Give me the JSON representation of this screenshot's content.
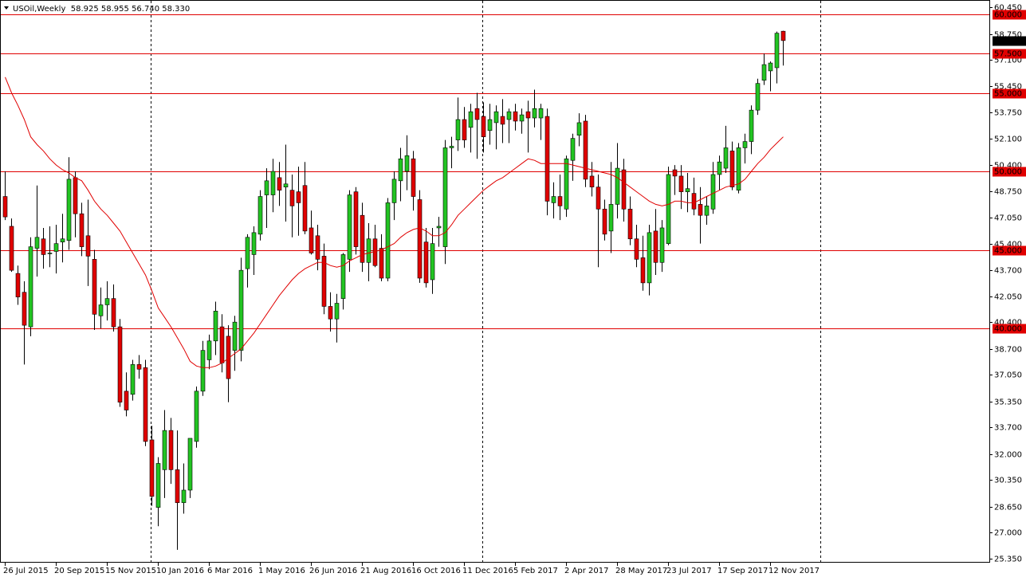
{
  "chart_data": {
    "type": "candlestick",
    "title": "USOil,Weekly  58.925 58.955 56.740 58.330",
    "categories": [
      "26 Jul 2015",
      null,
      null,
      null,
      null,
      null,
      null,
      null,
      "20 Sep 2015",
      null,
      null,
      null,
      null,
      null,
      null,
      null,
      "15 Nov 2015",
      null,
      null,
      null,
      null,
      null,
      null,
      null,
      "10 Jan 2016",
      null,
      null,
      null,
      null,
      null,
      null,
      null,
      "6 Mar 2016",
      null,
      null,
      null,
      null,
      null,
      null,
      null,
      "1 May 2016",
      null,
      null,
      null,
      null,
      null,
      null,
      null,
      "26 Jun 2016",
      null,
      null,
      null,
      null,
      null,
      null,
      null,
      "21 Aug 2016",
      null,
      null,
      null,
      null,
      null,
      null,
      null,
      "16 Oct 2016",
      null,
      null,
      null,
      null,
      null,
      null,
      null,
      "11 Dec 2016",
      null,
      null,
      null,
      null,
      null,
      null,
      null,
      "5 Feb 2017",
      null,
      null,
      null,
      null,
      null,
      null,
      null,
      "2 Apr 2017",
      null,
      null,
      null,
      null,
      null,
      null,
      null,
      "28 May 2017",
      null,
      null,
      null,
      null,
      null,
      null,
      null,
      "23 Jul 2017",
      null,
      null,
      null,
      null,
      null,
      null,
      null,
      "17 Sep 2017",
      null,
      null,
      null,
      null,
      null,
      null,
      null,
      "12 Nov 2017",
      null,
      null
    ],
    "open": [
      48.4,
      46.5,
      43.5,
      42.3,
      40.1,
      45.1,
      45.7,
      44.8,
      44.9,
      45.5,
      45.6,
      49.6,
      47.3,
      45.9,
      44.4,
      40.8,
      41.5,
      41.9,
      40.1,
      36.0,
      35.8,
      37.7,
      37.5,
      32.9,
      28.6,
      31.0,
      33.5,
      31.0,
      28.9,
      29.7,
      32.8,
      36.0,
      38.0,
      39.2,
      40.1,
      39.5,
      38.6,
      38.6,
      43.8,
      44.7,
      46.0,
      48.5,
      48.5,
      49.6,
      49.0,
      48.8,
      48.7,
      49.1,
      46.4,
      45.9,
      44.6,
      41.4,
      40.6,
      41.9,
      44.4,
      48.7,
      47.2,
      44.2,
      45.7,
      45.1,
      43.2,
      48.0,
      49.4,
      50.0,
      50.8,
      48.2,
      45.5,
      43.1,
      46.4,
      45.2,
      51.5,
      52.0,
      53.3,
      52.8,
      54.0,
      53.5,
      52.6,
      53.1,
      53.5,
      53.3,
      53.8,
      53.2,
      53.8,
      53.4,
      53.4,
      53.5,
      48.0,
      48.4,
      47.6,
      50.7,
      52.3,
      53.2,
      49.7,
      49.0,
      47.6,
      46.2,
      47.9,
      50.1,
      47.6,
      45.7,
      44.5,
      42.9,
      46.2,
      44.2,
      45.4,
      50.1,
      49.7,
      48.7,
      48.6,
      47.9,
      47.2,
      47.6,
      49.8,
      50.2,
      51.3,
      48.8,
      51.5,
      51.9,
      53.9,
      55.8,
      56.4,
      56.6,
      58.925
    ],
    "high": [
      50.0,
      47.0,
      44.0,
      43.0,
      45.8,
      49.1,
      46.4,
      46.5,
      46.6,
      47.3,
      50.9,
      50.0,
      48.0,
      48.2,
      45.0,
      42.6,
      43.0,
      42.8,
      40.6,
      37.2,
      38.0,
      38.3,
      38.0,
      33.8,
      31.8,
      34.8,
      34.3,
      33.5,
      31.4,
      33.0,
      36.3,
      39.2,
      39.6,
      41.7,
      40.9,
      40.2,
      40.8,
      44.5,
      46.0,
      46.5,
      48.8,
      50.2,
      50.8,
      50.6,
      51.7,
      49.8,
      50.3,
      50.6,
      47.5,
      46.6,
      45.4,
      42.3,
      42.2,
      44.8,
      48.8,
      49.0,
      48.0,
      46.7,
      46.6,
      46.0,
      48.3,
      50.0,
      51.5,
      52.3,
      51.3,
      48.8,
      46.4,
      46.4,
      47.1,
      52.0,
      52.2,
      54.7,
      54.1,
      54.3,
      55.0,
      54.4,
      54.3,
      54.2,
      54.6,
      54.0,
      54.3,
      54.0,
      54.5,
      55.2,
      54.3,
      54.0,
      49.3,
      49.8,
      51.0,
      52.4,
      53.7,
      53.6,
      50.6,
      49.8,
      48.2,
      50.6,
      51.8,
      50.8,
      48.4,
      46.6,
      45.9,
      46.6,
      47.6,
      46.9,
      50.3,
      50.4,
      50.4,
      49.9,
      49.6,
      49.0,
      48.4,
      50.6,
      51.0,
      52.9,
      51.9,
      51.8,
      52.4,
      54.2,
      55.9,
      57.5,
      57.0,
      58.9,
      58.955
    ],
    "low": [
      46.9,
      43.6,
      41.5,
      37.7,
      39.5,
      43.3,
      43.8,
      43.9,
      43.5,
      44.2,
      45.0,
      45.8,
      44.6,
      42.7,
      39.9,
      40.0,
      40.5,
      39.8,
      35.0,
      34.4,
      35.4,
      36.8,
      32.5,
      28.7,
      27.4,
      29.2,
      30.1,
      25.9,
      28.2,
      29.2,
      32.4,
      35.7,
      37.4,
      38.3,
      37.2,
      35.3,
      37.3,
      37.9,
      42.6,
      43.4,
      45.6,
      46.4,
      47.4,
      47.8,
      46.8,
      45.8,
      45.9,
      46.0,
      44.7,
      43.7,
      40.9,
      39.8,
      39.1,
      41.2,
      43.6,
      44.7,
      43.6,
      43.0,
      43.9,
      43.0,
      43.0,
      46.9,
      48.1,
      48.8,
      47.5,
      42.9,
      42.6,
      42.2,
      45.2,
      44.1,
      50.2,
      51.3,
      51.5,
      51.2,
      50.8,
      51.2,
      51.7,
      51.4,
      51.8,
      51.8,
      52.6,
      52.4,
      51.2,
      52.8,
      52.0,
      47.2,
      47.0,
      46.9,
      47.1,
      49.4,
      51.6,
      49.0,
      48.4,
      43.9,
      45.6,
      44.8,
      47.0,
      46.8,
      45.3,
      43.9,
      42.4,
      42.1,
      43.4,
      43.6,
      45.3,
      48.5,
      47.6,
      47.4,
      47.2,
      45.4,
      46.6,
      47.3,
      48.8,
      49.9,
      48.8,
      48.6,
      50.5,
      51.1,
      53.6,
      55.5,
      55.1,
      55.6,
      56.74
    ],
    "close": [
      47.1,
      43.7,
      42.0,
      40.2,
      45.2,
      45.8,
      44.7,
      44.8,
      45.4,
      45.7,
      49.5,
      47.3,
      45.2,
      44.6,
      40.9,
      41.5,
      41.9,
      40.1,
      35.3,
      34.8,
      37.7,
      37.4,
      32.8,
      29.3,
      31.4,
      33.5,
      31.0,
      28.9,
      29.7,
      33.0,
      36.0,
      38.6,
      39.2,
      41.1,
      37.8,
      36.8,
      40.4,
      43.7,
      45.8,
      46.1,
      48.4,
      49.4,
      50.0,
      48.8,
      49.2,
      47.8,
      48.0,
      46.2,
      44.8,
      44.4,
      41.4,
      40.6,
      41.6,
      44.7,
      48.5,
      45.2,
      44.2,
      45.7,
      44.0,
      43.2,
      48.0,
      49.5,
      50.8,
      51.0,
      48.4,
      43.2,
      42.9,
      45.4,
      46.5,
      51.5,
      51.6,
      53.3,
      52.0,
      53.8,
      53.3,
      52.2,
      53.3,
      53.8,
      53.0,
      53.8,
      53.2,
      53.6,
      53.4,
      54.0,
      54.0,
      48.1,
      48.4,
      47.8,
      50.8,
      52.1,
      53.1,
      49.5,
      49.0,
      47.6,
      46.0,
      47.9,
      50.2,
      47.6,
      45.7,
      44.4,
      42.9,
      46.1,
      44.2,
      46.4,
      49.8,
      49.7,
      48.7,
      48.9,
      47.6,
      47.2,
      47.8,
      49.8,
      50.6,
      51.5,
      49.0,
      51.5,
      51.9,
      53.9,
      55.6,
      56.8,
      56.9,
      58.8,
      58.33
    ],
    "up_color": "#22c422",
    "down_color": "#e00000",
    "ma": {
      "color": "#e00000",
      "values": [
        56.0,
        55.0,
        54.2,
        53.3,
        52.2,
        51.7,
        51.3,
        50.8,
        50.4,
        50.1,
        49.9,
        49.6,
        49.4,
        48.8,
        48.1,
        47.6,
        47.2,
        46.7,
        46.2,
        45.5,
        44.8,
        44.1,
        43.4,
        42.4,
        41.3,
        40.7,
        40.1,
        39.4,
        38.7,
        37.9,
        37.6,
        37.5,
        37.5,
        37.6,
        37.8,
        38.1,
        38.4,
        38.7,
        39.2,
        39.7,
        40.3,
        40.9,
        41.5,
        42.1,
        42.6,
        43.1,
        43.5,
        43.8,
        44.0,
        44.2,
        44.2,
        44.0,
        43.9,
        44.0,
        44.3,
        44.5,
        44.7,
        44.8,
        44.9,
        45.0,
        45.2,
        45.4,
        45.8,
        46.1,
        46.3,
        46.4,
        46.2,
        45.9,
        45.9,
        46.1,
        46.6,
        47.2,
        47.6,
        48.0,
        48.4,
        48.8,
        49.1,
        49.4,
        49.6,
        49.9,
        50.2,
        50.5,
        50.8,
        50.7,
        50.5,
        50.5,
        50.5,
        50.5,
        50.5,
        50.4,
        50.3,
        50.2,
        50.1,
        50.0,
        49.9,
        49.8,
        49.6,
        49.3,
        49.0,
        48.7,
        48.4,
        48.1,
        47.9,
        47.8,
        47.9,
        48.1,
        48.1,
        48.0,
        48.0,
        48.2,
        48.4,
        48.6,
        48.8,
        49.0,
        49.1,
        49.2,
        49.5,
        50.0,
        50.5,
        50.9,
        51.4,
        51.8,
        52.2
      ]
    },
    "levels": [
      {
        "value": 60,
        "label": "60.000"
      },
      {
        "value": 57.5,
        "label": "57.500"
      },
      {
        "value": 55,
        "label": "55.000"
      },
      {
        "value": 50,
        "label": "50.000"
      },
      {
        "value": 45,
        "label": "45.000"
      },
      {
        "value": 40,
        "label": "40.000"
      }
    ],
    "level_color": "#e00000",
    "last_price": {
      "value": 58.33,
      "label": "58.330"
    },
    "ylim": [
      25.08,
      60.71
    ],
    "yticks": [
      {
        "value": 60.45,
        "label": "60.450"
      },
      {
        "value": 58.75,
        "label": "58.750"
      },
      {
        "value": 57.1,
        "label": "57.100"
      },
      {
        "value": 55.45,
        "label": "55.450"
      },
      {
        "value": 53.75,
        "label": "53.750"
      },
      {
        "value": 52.1,
        "label": "52.100"
      },
      {
        "value": 50.4,
        "label": "50.400"
      },
      {
        "value": 48.75,
        "label": "48.750"
      },
      {
        "value": 47.05,
        "label": "47.050"
      },
      {
        "value": 45.4,
        "label": "45.400"
      },
      {
        "value": 43.7,
        "label": "43.700"
      },
      {
        "value": 42.05,
        "label": "42.050"
      },
      {
        "value": 40.4,
        "label": "40.400"
      },
      {
        "value": 38.7,
        "label": "38.700"
      },
      {
        "value": 37.05,
        "label": "37.050"
      },
      {
        "value": 35.35,
        "label": "35.350"
      },
      {
        "value": 33.7,
        "label": "33.700"
      },
      {
        "value": 32,
        "label": "32.000"
      },
      {
        "value": 30.35,
        "label": "30.350"
      },
      {
        "value": 28.65,
        "label": "28.650"
      },
      {
        "value": 27,
        "label": "27.000"
      },
      {
        "value": 25.35,
        "label": "25.350"
      }
    ]
  }
}
